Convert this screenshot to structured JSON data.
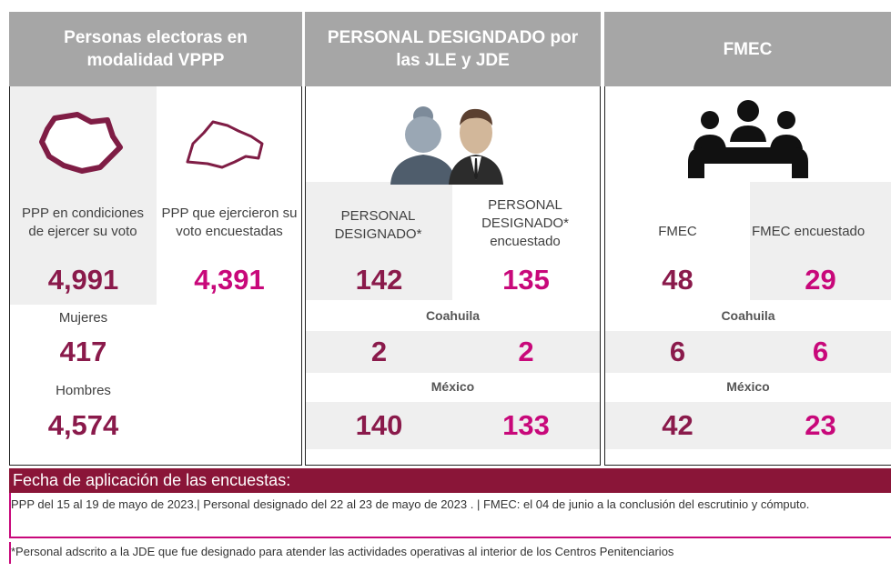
{
  "panels": [
    {
      "header": "Personas electoras en modalidad VPPP",
      "columns": [
        {
          "label": "PPP en condiciones de ejercer su voto",
          "total": "4,991"
        },
        {
          "label": "PPP que ejercieron su voto encuestadas",
          "total": "4,391"
        }
      ],
      "breakdown": [
        {
          "label": "Mujeres",
          "value": "417"
        },
        {
          "label": "Hombres",
          "value": "4,574"
        }
      ]
    },
    {
      "header": "PERSONAL DESIGNDADO por las JLE y JDE",
      "columns": [
        {
          "label": "PERSONAL DESIGNADO*",
          "total": "142"
        },
        {
          "label": "PERSONAL DESIGNADO* encuestado",
          "total": "135"
        }
      ],
      "states": [
        {
          "name": "Coahuila",
          "values": [
            "2",
            "2"
          ]
        },
        {
          "name": "México",
          "values": [
            "140",
            "133"
          ]
        }
      ]
    },
    {
      "header": "FMEC",
      "columns": [
        {
          "label": "FMEC",
          "total": "48"
        },
        {
          "label": "FMEC encuestado",
          "total": "29"
        }
      ],
      "states": [
        {
          "name": "Coahuila",
          "values": [
            "6",
            "6"
          ]
        },
        {
          "name": "México",
          "values": [
            "42",
            "23"
          ]
        }
      ]
    }
  ],
  "footer": {
    "title": "Fecha de aplicación de las encuestas:",
    "note": "PPP del 15 al 19 de mayo de 2023.|   Personal designado del 22 al 23 de mayo de 2023 .   | FMEC: el 04 de junio a la conclusión del escrutinio y cómputo.",
    "footnote": "*Personal adscrito a la JDE que fue designado para atender las actividades operativas al interior de los Centros Penitenciarios"
  }
}
